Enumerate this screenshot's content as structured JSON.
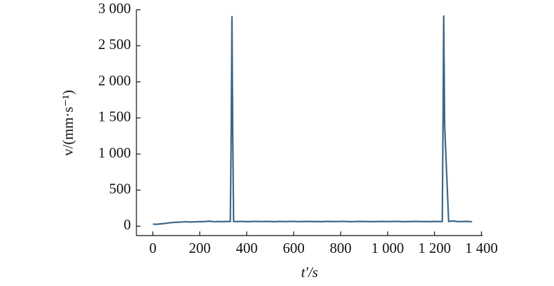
{
  "chart_data": {
    "type": "line",
    "xlabel": "t′/s",
    "ylabel": "v/(mm·s⁻¹)",
    "x": [
      0,
      10,
      20,
      40,
      60,
      80,
      100,
      120,
      140,
      160,
      180,
      200,
      220,
      240,
      260,
      280,
      300,
      320,
      330,
      334,
      337,
      340,
      344,
      360,
      380,
      400,
      420,
      440,
      460,
      480,
      500,
      520,
      540,
      560,
      580,
      600,
      620,
      640,
      660,
      680,
      700,
      720,
      740,
      760,
      780,
      800,
      820,
      840,
      860,
      880,
      900,
      920,
      940,
      960,
      980,
      1000,
      1020,
      1040,
      1060,
      1080,
      1100,
      1120,
      1140,
      1160,
      1180,
      1200,
      1220,
      1230,
      1233,
      1236,
      1239,
      1243,
      1260,
      1280,
      1300,
      1320,
      1340,
      1360
    ],
    "series": [
      {
        "color": "#3b6688",
        "values": [
          30,
          26,
          28,
          34,
          42,
          50,
          54,
          57,
          62,
          58,
          61,
          63,
          64,
          70,
          62,
          65,
          63,
          66,
          64,
          1400,
          2910,
          1400,
          65,
          64,
          66,
          63,
          65,
          67,
          64,
          66,
          65,
          63,
          66,
          64,
          65,
          67,
          63,
          65,
          66,
          64,
          65,
          63,
          66,
          65,
          64,
          67,
          65,
          63,
          64,
          66,
          65,
          64,
          63,
          65,
          66,
          64,
          65,
          67,
          64,
          63,
          65,
          66,
          64,
          65,
          63,
          66,
          64,
          64,
          66,
          1400,
          2920,
          1400,
          66,
          72,
          63,
          65,
          66,
          62
        ]
      }
    ],
    "xlim": [
      -70,
      1405
    ],
    "ylim": [
      -130,
      3000
    ],
    "xticks": [
      0,
      200,
      400,
      600,
      800,
      {
        "value": 1000,
        "label": "1 000"
      },
      {
        "value": 1200,
        "label": "1 200"
      },
      {
        "value": 1400,
        "label": "1 400"
      }
    ],
    "yticks": [
      0,
      500,
      {
        "value": 1000,
        "label": "1 000"
      },
      {
        "value": 1500,
        "label": "1 500"
      },
      {
        "value": 2000,
        "label": "2 000"
      },
      {
        "value": 2500,
        "label": "2 500"
      },
      {
        "value": 3000,
        "label": "3 000"
      }
    ]
  }
}
